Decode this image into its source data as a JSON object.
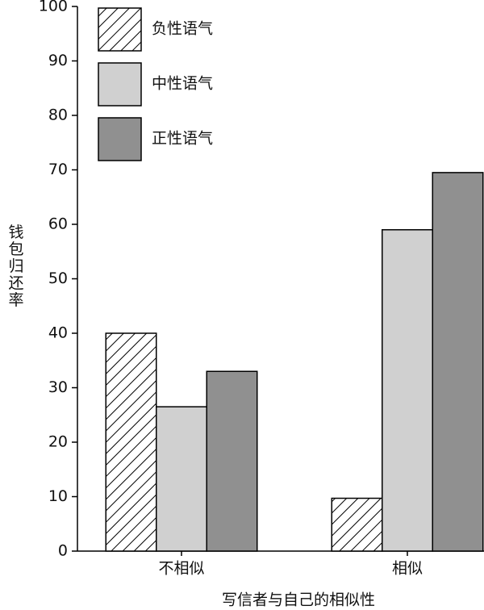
{
  "chart_data": {
    "type": "bar",
    "x_label": "写信者与自己的相似性",
    "y_label": "钱包归还率",
    "categories": [
      "不相似",
      "相似"
    ],
    "series": [
      {
        "name": "负性语气",
        "color": "#ffffff",
        "pattern": "diagonal-hatch",
        "values": [
          40,
          9.7
        ]
      },
      {
        "name": "中性语气",
        "color": "#d0d0d0",
        "values": [
          26.5,
          59
        ]
      },
      {
        "name": "正性语气",
        "color": "#909090",
        "values": [
          33,
          69.5
        ]
      }
    ],
    "ylim": [
      0,
      100
    ],
    "yticks": [
      0,
      10,
      20,
      30,
      40,
      50,
      60,
      70,
      80,
      90,
      100
    ],
    "legend": "upper-left"
  }
}
